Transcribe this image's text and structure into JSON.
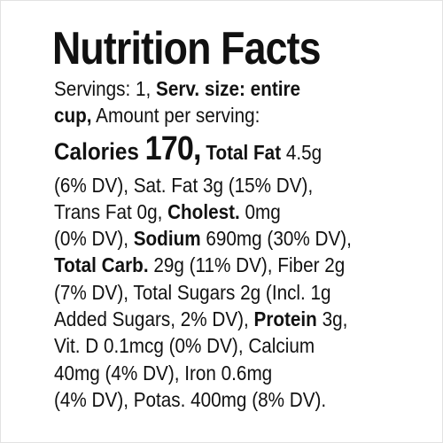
{
  "header": {
    "title": "Nutrition Facts"
  },
  "lines": [
    [
      {
        "text": "Servings: 1, ",
        "style": "regular"
      },
      {
        "text": "Serv. size: entire",
        "style": "bold"
      }
    ],
    [
      {
        "text": "cup,",
        "style": "bold"
      },
      {
        "text": " Amount per serving:",
        "style": "regular"
      }
    ],
    [
      {
        "text": "Calories ",
        "style": "semilarge"
      },
      {
        "text": "170,",
        "style": "large"
      },
      {
        "text": " Total Fat",
        "style": "bold"
      },
      {
        "text": " 4.5g",
        "style": "regular"
      }
    ],
    [
      {
        "text": "(6% DV), Sat. Fat 3g (15% DV),",
        "style": "regular"
      }
    ],
    [
      {
        "text": "Trans Fat 0g, ",
        "style": "regular"
      },
      {
        "text": "Cholest.",
        "style": "bold"
      },
      {
        "text": " 0mg",
        "style": "regular"
      }
    ],
    [
      {
        "text": "(0% DV), ",
        "style": "regular"
      },
      {
        "text": "Sodium",
        "style": "bold"
      },
      {
        "text": " 690mg (30% DV),",
        "style": "regular"
      }
    ],
    [
      {
        "text": "Total Carb.",
        "style": "bold"
      },
      {
        "text": " 29g (11% DV), Fiber 2g",
        "style": "regular"
      }
    ],
    [
      {
        "text": "(7% DV), Total Sugars 2g (Incl. 1g",
        "style": "regular"
      }
    ],
    [
      {
        "text": "Added Sugars, 2% DV), ",
        "style": "regular"
      },
      {
        "text": "Protein",
        "style": "bold"
      },
      {
        "text": " 3g,",
        "style": "regular"
      }
    ],
    [
      {
        "text": "Vit. D 0.1mcg (0% DV), Calcium",
        "style": "regular"
      }
    ],
    [
      {
        "text": "40mg (4% DV), Iron 0.6mg",
        "style": "regular"
      }
    ],
    [
      {
        "text": "(4% DV), Potas. 400mg (8% DV).",
        "style": "regular"
      }
    ]
  ]
}
